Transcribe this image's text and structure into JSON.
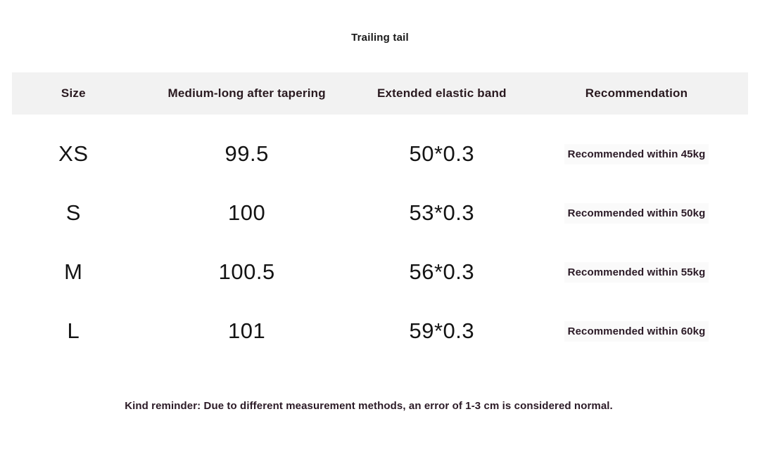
{
  "page": {
    "title": "Trailing tail",
    "footer_note": "Kind reminder: Due to different measurement methods, an error of 1-3 cm is considered normal."
  },
  "table": {
    "columns": [
      "Size",
      "Medium-long after tapering",
      "Extended elastic band",
      "Recommendation"
    ],
    "rows": [
      {
        "size": "XS",
        "length": "99.5",
        "elastic": "50*0.3",
        "recommendation": "Recommended within 45kg"
      },
      {
        "size": "S",
        "length": "100",
        "elastic": "53*0.3",
        "recommendation": "Recommended within 50kg"
      },
      {
        "size": "M",
        "length": "100.5",
        "elastic": "56*0.3",
        "recommendation": "Recommended within 55kg"
      },
      {
        "size": "L",
        "length": "101",
        "elastic": "59*0.3",
        "recommendation": "Recommended within 60kg"
      }
    ]
  },
  "colors": {
    "header_bg": "#f2f2f2",
    "header_text": "#29191f",
    "data_text": "#141414",
    "bold_text": "#2b1a26",
    "recommendation_highlight": "#fafafa"
  }
}
